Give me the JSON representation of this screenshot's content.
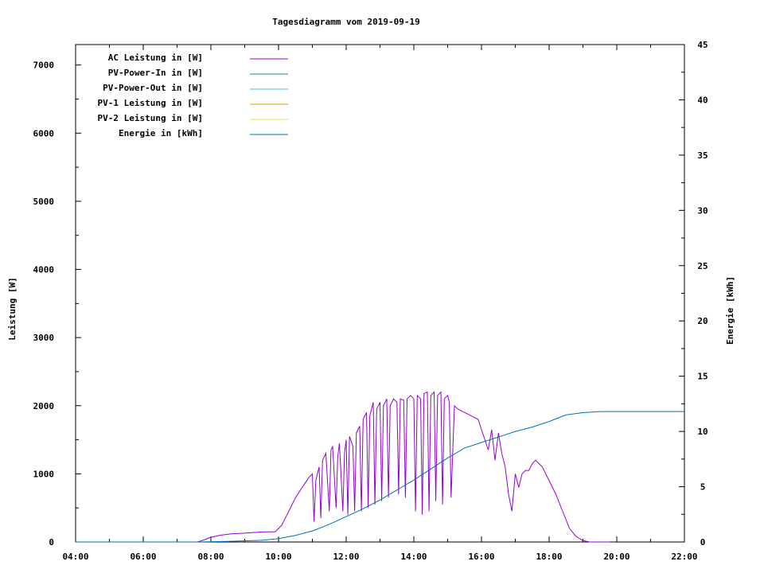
{
  "chart_data": {
    "type": "line",
    "title": "Tagesdiagramm vom 2019-09-19",
    "ylabel": "Leistung [W]",
    "y2label": "Energie [kWh]",
    "x_ticks": [
      "04:00",
      "06:00",
      "08:00",
      "10:00",
      "12:00",
      "14:00",
      "16:00",
      "18:00",
      "20:00",
      "22:00"
    ],
    "xlim_hours": [
      4,
      22
    ],
    "y_ticks": [
      0,
      1000,
      2000,
      3000,
      4000,
      5000,
      6000,
      7000
    ],
    "ylim": [
      0,
      7300
    ],
    "y2_ticks": [
      0,
      5,
      10,
      15,
      20,
      25,
      30,
      35,
      40,
      45
    ],
    "y2lim": [
      0,
      45
    ],
    "legend_position": "top-left",
    "series": [
      {
        "name": "AC Leistung in [W]",
        "color": "#9400d3",
        "axis": "left",
        "x": [
          7.6,
          7.8,
          8.0,
          8.3,
          8.6,
          9.0,
          9.3,
          9.6,
          9.9,
          10.1,
          10.3,
          10.5,
          10.7,
          10.9,
          11.0,
          11.05,
          11.1,
          11.2,
          11.25,
          11.3,
          11.4,
          11.5,
          11.55,
          11.6,
          11.7,
          11.75,
          11.8,
          11.9,
          11.95,
          12.0,
          12.05,
          12.1,
          12.2,
          12.25,
          12.3,
          12.4,
          12.45,
          12.5,
          12.6,
          12.65,
          12.7,
          12.8,
          12.85,
          12.9,
          13.0,
          13.05,
          13.1,
          13.2,
          13.25,
          13.3,
          13.4,
          13.5,
          13.55,
          13.6,
          13.7,
          13.75,
          13.8,
          13.9,
          14.0,
          14.05,
          14.1,
          14.2,
          14.25,
          14.3,
          14.4,
          14.45,
          14.5,
          14.6,
          14.65,
          14.7,
          14.8,
          14.85,
          14.9,
          15.0,
          15.05,
          15.1,
          15.2,
          15.3,
          15.5,
          15.7,
          15.9,
          16.1,
          16.2,
          16.3,
          16.4,
          16.5,
          16.6,
          16.7,
          16.8,
          16.9,
          17.0,
          17.1,
          17.2,
          17.3,
          17.4,
          17.5,
          17.6,
          17.8,
          18.0,
          18.2,
          18.4,
          18.6,
          18.8,
          19.0,
          19.2,
          19.4,
          19.6,
          19.8
        ],
        "values": [
          0,
          30,
          70,
          100,
          120,
          130,
          140,
          150,
          150,
          250,
          450,
          650,
          800,
          950,
          1000,
          300,
          900,
          1100,
          350,
          1200,
          1300,
          450,
          1350,
          1400,
          500,
          1250,
          1450,
          450,
          1300,
          1500,
          400,
          1550,
          1400,
          450,
          1600,
          1700,
          450,
          1800,
          1900,
          500,
          1850,
          2050,
          550,
          1950,
          2050,
          600,
          2000,
          2100,
          650,
          2000,
          2100,
          2050,
          700,
          2100,
          2080,
          650,
          2100,
          2150,
          2100,
          450,
          2150,
          2100,
          400,
          2180,
          2200,
          450,
          2150,
          2200,
          600,
          2150,
          2200,
          550,
          2100,
          2150,
          2050,
          650,
          2000,
          1950,
          1900,
          1850,
          1800,
          1500,
          1350,
          1650,
          1200,
          1600,
          1300,
          1100,
          700,
          450,
          1000,
          800,
          1000,
          1050,
          1050,
          1150,
          1200,
          1100,
          900,
          700,
          450,
          200,
          80,
          20,
          0,
          0,
          0,
          0
        ]
      },
      {
        "name": "PV-Power-In in [W]",
        "color": "#009e73",
        "axis": "left",
        "x": [],
        "values": []
      },
      {
        "name": "PV-Power-Out in [W]",
        "color": "#56b4e9",
        "axis": "left",
        "x": [],
        "values": []
      },
      {
        "name": "PV-1 Leistung in [W]",
        "color": "#e69f00",
        "axis": "left",
        "x": [],
        "values": []
      },
      {
        "name": "PV-2 Leistung in [W]",
        "color": "#f0e442",
        "axis": "left",
        "x": [],
        "values": []
      },
      {
        "name": "Energie in [kWh]",
        "color": "#0072b2",
        "axis": "right",
        "x": [
          4,
          7.6,
          8.5,
          9.5,
          10.0,
          10.5,
          11.0,
          11.5,
          12.0,
          12.5,
          13.0,
          13.5,
          14.0,
          14.5,
          15.0,
          15.5,
          16.0,
          16.5,
          17.0,
          17.5,
          18.0,
          18.5,
          19.0,
          19.5,
          20.0,
          22.0
        ],
        "values": [
          0,
          0,
          0.05,
          0.15,
          0.3,
          0.6,
          1.0,
          1.6,
          2.3,
          3.0,
          3.8,
          4.7,
          5.6,
          6.6,
          7.6,
          8.5,
          9.0,
          9.5,
          10.0,
          10.4,
          10.9,
          11.5,
          11.7,
          11.8,
          11.8,
          11.8
        ]
      }
    ]
  }
}
